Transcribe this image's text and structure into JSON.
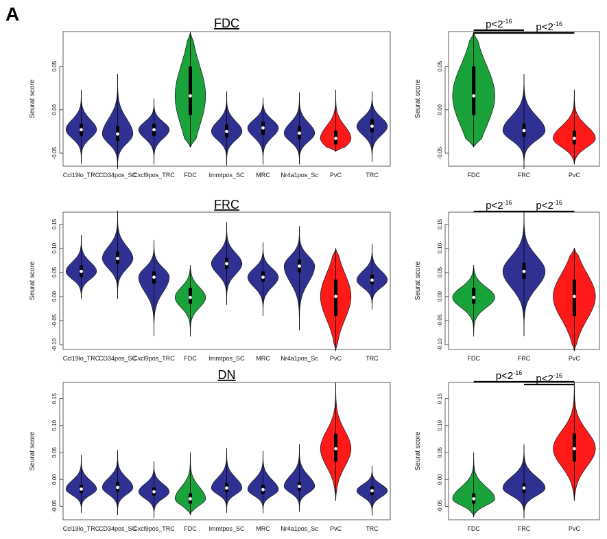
{
  "figure": {
    "panel_label": "A"
  },
  "colors": {
    "blue": "#2e3192",
    "green": "#1aa33a",
    "red": "#ff1a1a",
    "outline": "#111111"
  },
  "chart_data": [
    {
      "type": "violin",
      "panel": "row1-left",
      "title": "FDC",
      "ylabel": "Seurat score",
      "ylim": [
        -0.065,
        0.09
      ],
      "yticks": [
        -0.05,
        0.0,
        0.05
      ],
      "ytick_labels": [
        "-0.05",
        "0.00",
        "0.05"
      ],
      "categories": [
        "Ccl19lo_TRC",
        "CD34pos_SC",
        "Cxcl9pos_TRC",
        "FDC",
        "Immtpos_SC",
        "MRC",
        "Nr4a1pos_Sc",
        "PvC",
        "TRC"
      ],
      "colors": [
        "blue",
        "blue",
        "blue",
        "green",
        "blue",
        "blue",
        "blue",
        "red",
        "blue"
      ],
      "violins": [
        {
          "min": -0.062,
          "q1": -0.03,
          "median": -0.023,
          "q3": -0.016,
          "max": 0.023
        },
        {
          "min": -0.068,
          "q1": -0.036,
          "median": -0.028,
          "q3": -0.019,
          "max": 0.041
        },
        {
          "min": -0.063,
          "q1": -0.03,
          "median": -0.023,
          "q3": -0.016,
          "max": 0.013
        },
        {
          "min": -0.043,
          "q1": -0.006,
          "median": 0.016,
          "q3": 0.05,
          "max": 0.089
        },
        {
          "min": -0.064,
          "q1": -0.032,
          "median": -0.025,
          "q3": -0.017,
          "max": 0.021
        },
        {
          "min": -0.063,
          "q1": -0.029,
          "median": -0.021,
          "q3": -0.014,
          "max": 0.014
        },
        {
          "min": -0.063,
          "q1": -0.034,
          "median": -0.027,
          "q3": -0.019,
          "max": 0.02
        },
        {
          "min": -0.048,
          "q1": -0.04,
          "median": -0.033,
          "q3": -0.024,
          "max": 0.023
        },
        {
          "min": -0.06,
          "q1": -0.026,
          "median": -0.019,
          "q3": -0.011,
          "max": 0.021
        }
      ]
    },
    {
      "type": "violin",
      "panel": "row1-right",
      "ylabel": "Seurat score",
      "ylim": [
        -0.065,
        0.09
      ],
      "yticks": [
        -0.05,
        0.0,
        0.05
      ],
      "ytick_labels": [
        "-0.05",
        "0.00",
        "0.05"
      ],
      "categories": [
        "FDC",
        "FRC",
        "PvC"
      ],
      "colors": [
        "green",
        "blue",
        "red"
      ],
      "violins": [
        {
          "min": -0.043,
          "q1": -0.006,
          "median": 0.016,
          "q3": 0.05,
          "max": 0.089
        },
        {
          "min": -0.068,
          "q1": -0.031,
          "median": -0.024,
          "q3": -0.016,
          "max": 0.041
        },
        {
          "min": -0.063,
          "q1": -0.04,
          "median": -0.033,
          "q3": -0.024,
          "max": 0.023
        }
      ],
      "annotations": [
        {
          "text": "p<2",
          "sup": "-16",
          "from": 0,
          "to": 1,
          "level": 0
        },
        {
          "text": "p<2",
          "sup": "-16",
          "from": 0,
          "to": 2,
          "level": 1
        }
      ]
    },
    {
      "type": "violin",
      "panel": "row2-left",
      "title": "FRC",
      "ylabel": "Seurat score",
      "ylim": [
        -0.11,
        0.175
      ],
      "yticks": [
        -0.1,
        -0.05,
        0.0,
        0.05,
        0.1,
        0.15
      ],
      "ytick_labels": [
        "-0.10",
        "-0.05",
        "0.00",
        "0.05",
        "0.10",
        "0.15"
      ],
      "categories": [
        "Ccl19lo_TRC",
        "CD34pos_SC",
        "Cxcl9pos_TRC",
        "FDC",
        "Immtpos_SC",
        "MRC",
        "Nr4a1pos_Sc",
        "PvC",
        "TRC"
      ],
      "colors": [
        "blue",
        "blue",
        "blue",
        "green",
        "blue",
        "blue",
        "blue",
        "red",
        "blue"
      ],
      "violins": [
        {
          "min": -0.005,
          "q1": 0.04,
          "median": 0.052,
          "q3": 0.065,
          "max": 0.128
        },
        {
          "min": -0.005,
          "q1": 0.068,
          "median": 0.079,
          "q3": 0.093,
          "max": 0.178
        },
        {
          "min": -0.082,
          "q1": 0.027,
          "median": 0.04,
          "q3": 0.052,
          "max": 0.117
        },
        {
          "min": -0.083,
          "q1": -0.015,
          "median": -0.002,
          "q3": 0.018,
          "max": 0.065
        },
        {
          "min": -0.017,
          "q1": 0.058,
          "median": 0.068,
          "q3": 0.08,
          "max": 0.154
        },
        {
          "min": -0.04,
          "q1": 0.031,
          "median": 0.04,
          "q3": 0.052,
          "max": 0.112
        },
        {
          "min": -0.07,
          "q1": 0.05,
          "median": 0.063,
          "q3": 0.077,
          "max": 0.146
        },
        {
          "min": -0.113,
          "q1": -0.04,
          "median": 0.0,
          "q3": 0.035,
          "max": 0.1
        },
        {
          "min": -0.027,
          "q1": 0.025,
          "median": 0.034,
          "q3": 0.045,
          "max": 0.109
        }
      ]
    },
    {
      "type": "violin",
      "panel": "row2-right",
      "ylabel": "Seurat score",
      "ylim": [
        -0.11,
        0.175
      ],
      "yticks": [
        -0.1,
        -0.05,
        0.0,
        0.05,
        0.1,
        0.15
      ],
      "ytick_labels": [
        "-0.10",
        "-0.05",
        "0.00",
        "0.05",
        "0.10",
        "0.15"
      ],
      "categories": [
        "FDC",
        "FRC",
        "PvC"
      ],
      "colors": [
        "green",
        "blue",
        "red"
      ],
      "violins": [
        {
          "min": -0.083,
          "q1": -0.015,
          "median": -0.002,
          "q3": 0.018,
          "max": 0.065
        },
        {
          "min": -0.082,
          "q1": 0.037,
          "median": 0.052,
          "q3": 0.07,
          "max": 0.178
        },
        {
          "min": -0.113,
          "q1": -0.04,
          "median": 0.0,
          "q3": 0.035,
          "max": 0.1
        }
      ],
      "annotations": [
        {
          "text": "p<2",
          "sup": "-16",
          "from": 0,
          "to": 1,
          "level": 0
        },
        {
          "text": "p<2",
          "sup": "-16",
          "from": 1,
          "to": 2,
          "level": 0
        }
      ]
    },
    {
      "type": "violin",
      "panel": "row3-left",
      "title": "DN",
      "ylabel": "Seurat score",
      "ylim": [
        -0.075,
        0.18
      ],
      "yticks": [
        -0.05,
        0.0,
        0.05,
        0.1,
        0.15
      ],
      "ytick_labels": [
        "-0.05",
        "0.00",
        "0.05",
        "0.10",
        "0.15"
      ],
      "categories": [
        "Ccl19lo_TRC",
        "CD34pos_SC",
        "Cxcl9pos_TRC",
        "FDC",
        "Immtpos_SC",
        "MRC",
        "Nr4a1pos_Sc",
        "PvC",
        "TRC"
      ],
      "colors": [
        "blue",
        "blue",
        "blue",
        "green",
        "blue",
        "blue",
        "blue",
        "red",
        "blue"
      ],
      "violins": [
        {
          "min": -0.062,
          "q1": -0.025,
          "median": -0.018,
          "q3": -0.01,
          "max": 0.045
        },
        {
          "min": -0.066,
          "q1": -0.023,
          "median": -0.015,
          "q3": -0.005,
          "max": 0.054
        },
        {
          "min": -0.072,
          "q1": -0.03,
          "median": -0.023,
          "q3": -0.015,
          "max": 0.034
        },
        {
          "min": -0.066,
          "q1": -0.045,
          "median": -0.036,
          "q3": -0.026,
          "max": 0.05
        },
        {
          "min": -0.062,
          "q1": -0.024,
          "median": -0.016,
          "q3": -0.007,
          "max": 0.058
        },
        {
          "min": -0.063,
          "q1": -0.027,
          "median": -0.019,
          "q3": -0.01,
          "max": 0.053
        },
        {
          "min": -0.06,
          "q1": -0.021,
          "median": -0.013,
          "q3": -0.005,
          "max": 0.065
        },
        {
          "min": -0.04,
          "q1": 0.033,
          "median": 0.057,
          "q3": 0.085,
          "max": 0.18
        },
        {
          "min": -0.067,
          "q1": -0.029,
          "median": -0.021,
          "q3": -0.013,
          "max": 0.025
        }
      ]
    },
    {
      "type": "violin",
      "panel": "row3-right",
      "ylabel": "Seurat score",
      "ylim": [
        -0.075,
        0.18
      ],
      "yticks": [
        -0.05,
        0.0,
        0.05,
        0.1,
        0.15
      ],
      "ytick_labels": [
        "-0.05",
        "0.00",
        "0.05",
        "0.10",
        "0.15"
      ],
      "categories": [
        "FDC",
        "FRC",
        "PvC"
      ],
      "colors": [
        "green",
        "blue",
        "red"
      ],
      "violins": [
        {
          "min": -0.07,
          "q1": -0.045,
          "median": -0.036,
          "q3": -0.026,
          "max": 0.05
        },
        {
          "min": -0.072,
          "q1": -0.025,
          "median": -0.016,
          "q3": -0.007,
          "max": 0.065
        },
        {
          "min": -0.04,
          "q1": 0.033,
          "median": 0.057,
          "q3": 0.085,
          "max": 0.18
        }
      ],
      "annotations": [
        {
          "text": "p<2",
          "sup": "-16",
          "from": 0,
          "to": 2,
          "level": 0
        },
        {
          "text": "p<2",
          "sup": "-16",
          "from": 1,
          "to": 2,
          "level": 1
        }
      ]
    }
  ]
}
